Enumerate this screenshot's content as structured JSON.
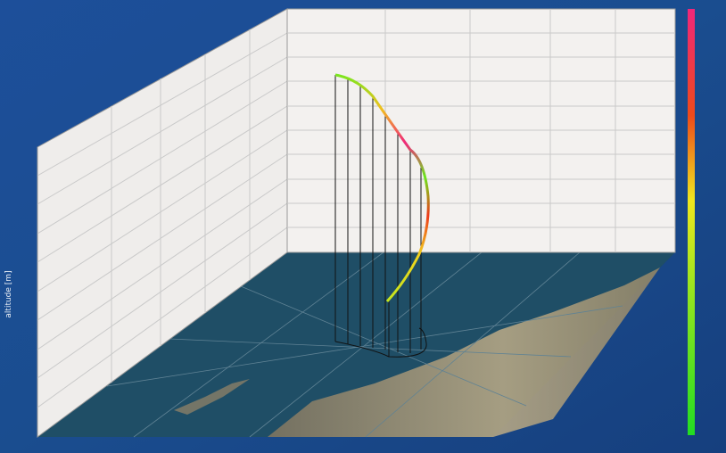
{
  "chart_data": {
    "type": "line3d",
    "y_label": "altitude [m]"
  }
}
